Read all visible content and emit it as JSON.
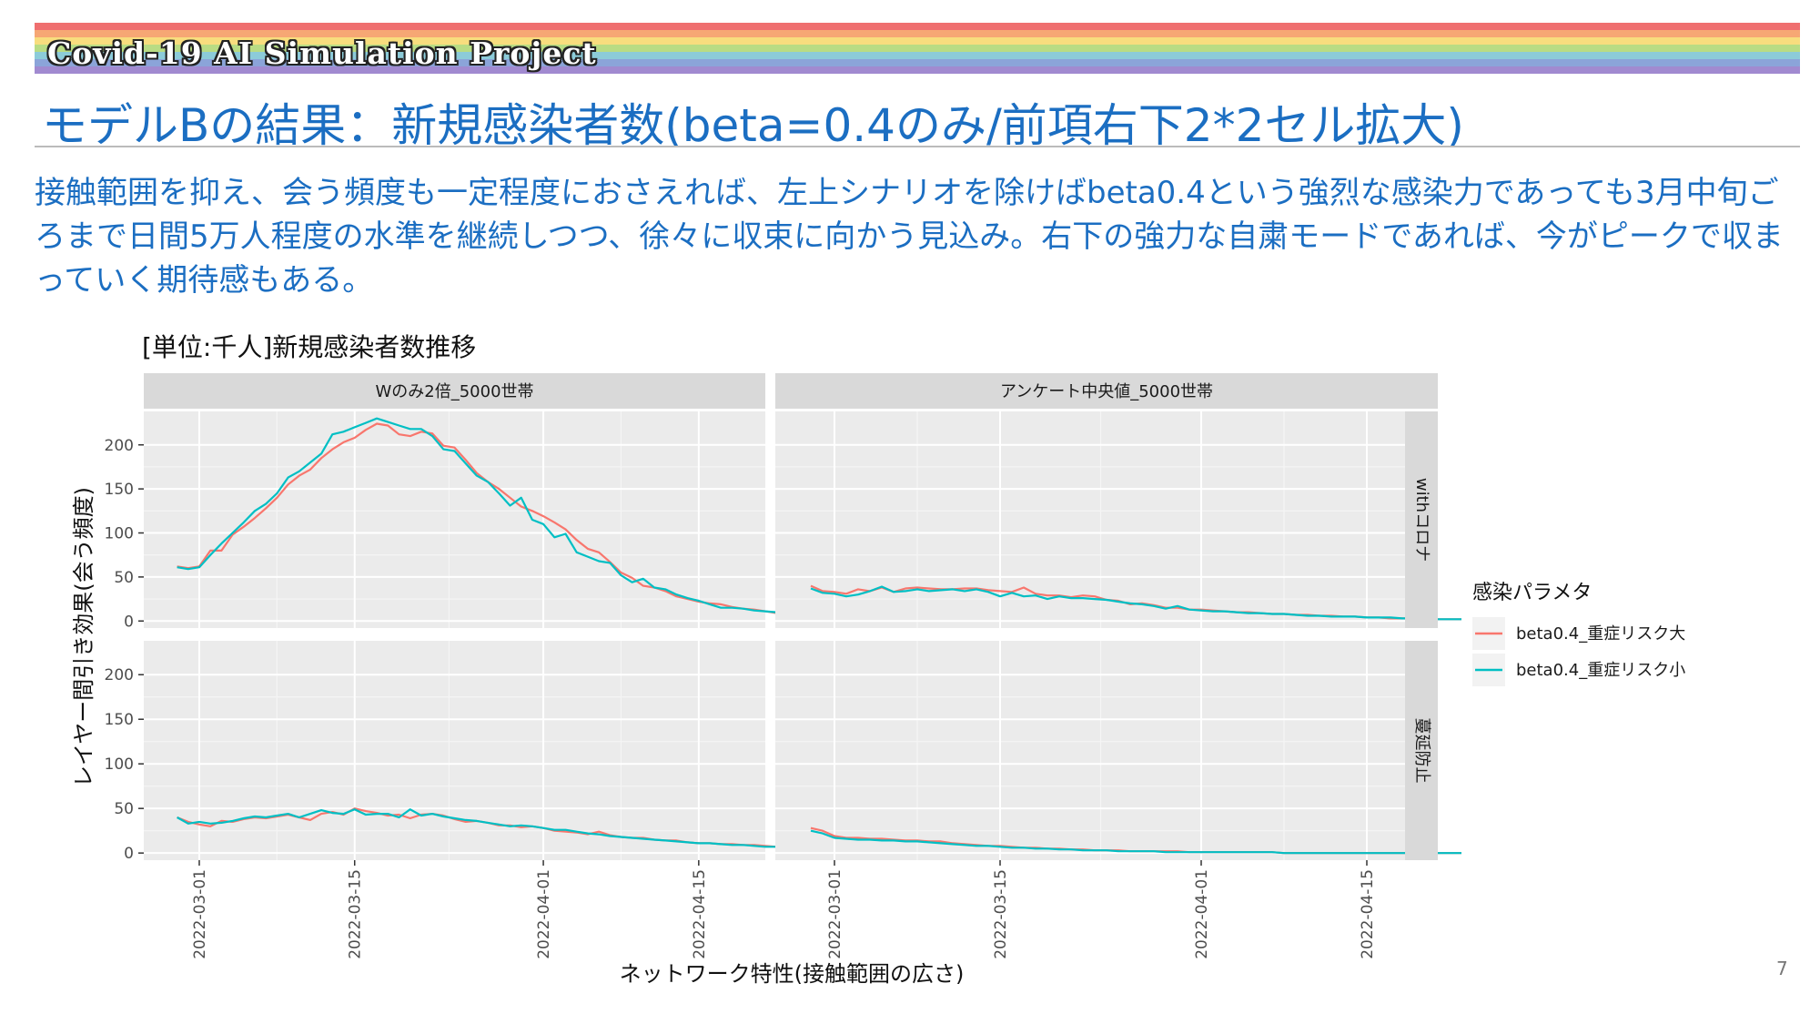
{
  "header": {
    "brand": "Covid-19 AI Simulation Project",
    "rainbow_colors": [
      "#ef6f6f",
      "#f6a774",
      "#f8dd7e",
      "#b9dc84",
      "#8ccbd9",
      "#8ba4d9",
      "#a18ad0"
    ]
  },
  "slide": {
    "title": "モデルBの結果：新規感染者数(beta=0.4のみ/前項右下2*2セル拡大)",
    "body": "接触範囲を抑え、会う頻度も一定程度におさえれば、左上シナリオを除けばbeta0.4という強烈な感染力であっても3月中旬ごろまで日間5万人程度の水準を継続しつつ、徐々に収束に向かう見込み。右下の強力な自粛モードであれば、今がピークで収まっていく期待感もある。",
    "chart_title": "[単位:千人]新規感染者数推移",
    "page_number": "7"
  },
  "chart_data": {
    "type": "line",
    "xlabel": "ネットワーク特性(接触範囲の広さ)",
    "ylabel": "レイヤー間引き効果(会う頻度)",
    "x_start": "2022-02-24",
    "x_end": "2022-04-21",
    "x_ticks": [
      "2022-03-01",
      "2022-03-15",
      "2022-04-01",
      "2022-04-15"
    ],
    "y_ticks": [
      0,
      50,
      100,
      150,
      200
    ],
    "ylim": [
      -8,
      238
    ],
    "facet_columns": [
      "Wのみ2倍_5000世帯",
      "アンケート中央値_5000世帯"
    ],
    "facet_rows": [
      "withコロナ",
      "蔓延防止"
    ],
    "legend": {
      "title": "感染パラメタ",
      "position": "right",
      "entries": [
        {
          "name": "beta0.4_重症リスク大",
          "color": "#f8766d"
        },
        {
          "name": "beta0.4_重症リスク小",
          "color": "#00bfc4"
        }
      ]
    },
    "panels": [
      {
        "column": "Wのみ2倍_5000世帯",
        "row": "withコロナ",
        "series": [
          {
            "name": "beta0.4_重症リスク大",
            "values": [
              62,
              60,
              62,
              80,
              80,
              98,
              107,
              117,
              128,
              140,
              155,
              165,
              172,
              185,
              195,
              203,
              208,
              217,
              224,
              222,
              212,
              210,
              215,
              213,
              199,
              197,
              183,
              168,
              158,
              150,
              140,
              130,
              125,
              119,
              112,
              104,
              92,
              82,
              78,
              67,
              55,
              49,
              40,
              38,
              34,
              28,
              25,
              22,
              20,
              19,
              16,
              14,
              13,
              11,
              9,
              8,
              7,
              6,
              5,
              5,
              4,
              4
            ]
          },
          {
            "name": "beta0.4_重症リスク小",
            "values": [
              61,
              59,
              61,
              75,
              88,
              100,
              112,
              125,
              133,
              145,
              163,
              170,
              180,
              190,
              212,
              215,
              220,
              225,
              230,
              226,
              222,
              218,
              218,
              210,
              195,
              193,
              179,
              165,
              158,
              145,
              131,
              140,
              115,
              110,
              95,
              99,
              78,
              73,
              68,
              66,
              52,
              44,
              48,
              38,
              36,
              30,
              26,
              23,
              19,
              15,
              15,
              14,
              12,
              11,
              10,
              9,
              8,
              7,
              6,
              5,
              5,
              4
            ]
          }
        ]
      },
      {
        "column": "アンケート中央値_5000世帯",
        "row": "withコロナ",
        "series": [
          {
            "name": "beta0.4_重症リスク大",
            "values": [
              40,
              34,
              33,
              31,
              36,
              34,
              38,
              33,
              37,
              38,
              37,
              36,
              36,
              37,
              37,
              35,
              34,
              33,
              38,
              31,
              29,
              29,
              27,
              29,
              28,
              24,
              23,
              19,
              20,
              18,
              15,
              15,
              13,
              13,
              12,
              11,
              10,
              10,
              9,
              8,
              8,
              7,
              7,
              6,
              6,
              5,
              5,
              4,
              4,
              3,
              3,
              3,
              2,
              2,
              2,
              2
            ]
          },
          {
            "name": "beta0.4_重症リスク小",
            "values": [
              37,
              32,
              31,
              28,
              30,
              34,
              39,
              33,
              34,
              36,
              34,
              35,
              36,
              34,
              36,
              33,
              28,
              32,
              28,
              29,
              25,
              28,
              26,
              26,
              25,
              24,
              22,
              20,
              19,
              17,
              14,
              17,
              13,
              12,
              11,
              11,
              10,
              9,
              9,
              8,
              8,
              7,
              6,
              6,
              5,
              5,
              5,
              4,
              4,
              4,
              3,
              3,
              3,
              2,
              2,
              2
            ]
          }
        ]
      },
      {
        "column": "Wのみ2倍_5000世帯",
        "row": "蔓延防止",
        "series": [
          {
            "name": "beta0.4_重症リスク大",
            "values": [
              40,
              35,
              32,
              30,
              36,
              35,
              38,
              40,
              39,
              41,
              43,
              40,
              37,
              44,
              46,
              43,
              50,
              47,
              45,
              42,
              43,
              39,
              43,
              44,
              42,
              38,
              35,
              36,
              34,
              31,
              31,
              29,
              30,
              28,
              25,
              24,
              23,
              21,
              24,
              20,
              18,
              17,
              17,
              15,
              14,
              14,
              12,
              11,
              11,
              10,
              10,
              9,
              9,
              8,
              7,
              7,
              6,
              6,
              5,
              5,
              4
            ]
          },
          {
            "name": "beta0.4_重症リスク小",
            "values": [
              40,
              33,
              35,
              33,
              34,
              36,
              39,
              41,
              40,
              42,
              44,
              40,
              44,
              48,
              45,
              44,
              49,
              43,
              44,
              44,
              40,
              49,
              42,
              44,
              41,
              39,
              37,
              36,
              34,
              32,
              30,
              31,
              30,
              28,
              26,
              26,
              24,
              22,
              21,
              19,
              18,
              17,
              16,
              15,
              14,
              13,
              12,
              11,
              11,
              10,
              9,
              9,
              8,
              7,
              7,
              6,
              6,
              5,
              5,
              4,
              4
            ]
          }
        ]
      },
      {
        "column": "アンケート中央値_5000世帯",
        "row": "蔓延防止",
        "series": [
          {
            "name": "beta0.4_重症リスク大",
            "values": [
              28,
              25,
              19,
              17,
              17,
              16,
              16,
              15,
              14,
              14,
              13,
              13,
              11,
              10,
              9,
              8,
              8,
              7,
              6,
              6,
              5,
              5,
              4,
              4,
              3,
              3,
              3,
              2,
              2,
              2,
              2,
              2,
              1,
              1,
              1,
              1,
              1,
              1,
              1,
              1,
              0,
              0,
              0,
              0,
              0,
              0,
              0,
              0,
              0,
              0,
              0,
              0,
              0,
              0,
              0,
              0
            ]
          },
          {
            "name": "beta0.4_重症リスク小",
            "values": [
              25,
              22,
              17,
              16,
              15,
              15,
              14,
              14,
              13,
              13,
              12,
              11,
              10,
              9,
              8,
              8,
              7,
              6,
              6,
              5,
              5,
              4,
              4,
              3,
              3,
              3,
              2,
              2,
              2,
              2,
              1,
              1,
              1,
              1,
              1,
              1,
              1,
              1,
              1,
              1,
              0,
              0,
              0,
              0,
              0,
              0,
              0,
              0,
              0,
              0,
              0,
              0,
              0,
              0,
              0,
              0
            ]
          }
        ]
      }
    ]
  }
}
